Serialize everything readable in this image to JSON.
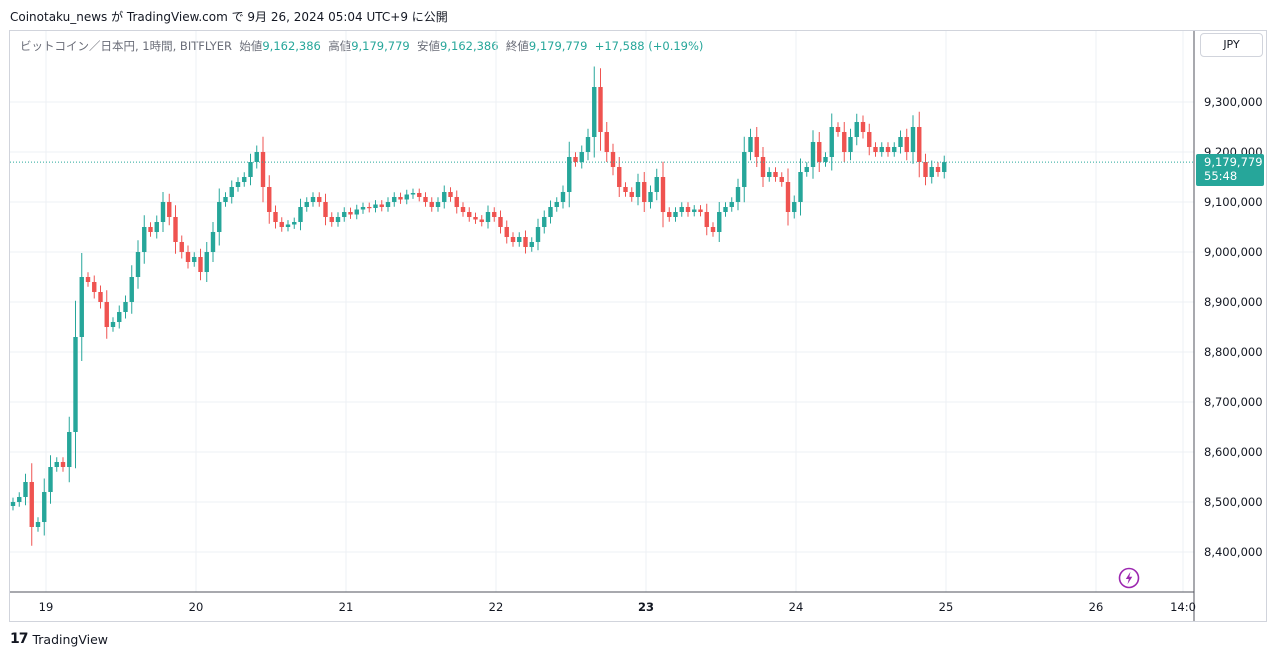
{
  "header": {
    "attribution": "Coinotaku_news が TradingView.com で 9月 26, 2024 05:04 UTC+9 に公開"
  },
  "symbol_info": {
    "name": "ビットコイン／日本円, 1時間, BITFLYER",
    "open_label": "始値",
    "open_value": "9,162,386",
    "high_label": "高値",
    "high_value": "9,179,779",
    "low_label": "安値",
    "low_value": "9,162,386",
    "close_label": "終値",
    "close_value": "9,179,779",
    "change": "+17,588 (+0.19%)"
  },
  "currency_button": "JPY",
  "last_price": {
    "price": "9,179,779",
    "countdown": "55:48"
  },
  "brand": {
    "logo": "17",
    "name": "TradingView"
  },
  "colors": {
    "up": "#26a69a",
    "down": "#ef5350",
    "grid": "#eef1f4",
    "accent_icon": "#9c27b0"
  },
  "chart_data": {
    "type": "candlestick",
    "interval_hours": 1,
    "x_start": "19 (day offset -0.76)",
    "x_tick_labels": [
      "19",
      "20",
      "21",
      "22",
      "23",
      "24",
      "25",
      "26",
      "14:0"
    ],
    "x_tick_days": [
      0,
      1,
      2,
      3,
      4,
      5,
      6,
      7,
      7.58
    ],
    "y_tick_labels": [
      "9,300,000",
      "9,200,000",
      "9,100,000",
      "9,000,000",
      "8,900,000",
      "8,800,000",
      "8,700,000",
      "8,600,000",
      "8,500,000",
      "8,400,000"
    ],
    "y_ticks": [
      9300000,
      9200000,
      9100000,
      9000000,
      8900000,
      8800000,
      8700000,
      8600000,
      8500000,
      8400000
    ],
    "ylim": [
      8320000,
      9400000
    ],
    "last_price": 9179779,
    "closes": [
      8500000,
      8510000,
      8540000,
      8450000,
      8460000,
      8520000,
      8570000,
      8580000,
      8570000,
      8640000,
      8830000,
      8950000,
      8940000,
      8920000,
      8900000,
      8850000,
      8860000,
      8880000,
      8900000,
      8950000,
      9000000,
      9050000,
      9040000,
      9060000,
      9100000,
      9070000,
      9020000,
      9000000,
      8980000,
      8990000,
      8960000,
      9000000,
      9040000,
      9100000,
      9110000,
      9130000,
      9140000,
      9150000,
      9180000,
      9200000,
      9130000,
      9080000,
      9060000,
      9050000,
      9055000,
      9060000,
      9090000,
      9100000,
      9110000,
      9100000,
      9070000,
      9060000,
      9070000,
      9080000,
      9075000,
      9085000,
      9090000,
      9088000,
      9095000,
      9090000,
      9100000,
      9110000,
      9105000,
      9115000,
      9118000,
      9110000,
      9100000,
      9090000,
      9100000,
      9120000,
      9110000,
      9090000,
      9080000,
      9070000,
      9065000,
      9060000,
      9080000,
      9070000,
      9050000,
      9030000,
      9020000,
      9030000,
      9010000,
      9020000,
      9050000,
      9070000,
      9090000,
      9100000,
      9120000,
      9190000,
      9180000,
      9200000,
      9230000,
      9330000,
      9240000,
      9200000,
      9170000,
      9130000,
      9120000,
      9110000,
      9140000,
      9100000,
      9120000,
      9150000,
      9080000,
      9070000,
      9080000,
      9090000,
      9080000,
      9085000,
      9080000,
      9050000,
      9040000,
      9080000,
      9090000,
      9100000,
      9130000,
      9200000,
      9230000,
      9190000,
      9150000,
      9160000,
      9150000,
      9140000,
      9080000,
      9100000,
      9160000,
      9170000,
      9220000,
      9180000,
      9190000,
      9250000,
      9240000,
      9200000,
      9230000,
      9260000,
      9240000,
      9210000,
      9200000,
      9210000,
      9200000,
      9210000,
      9230000,
      9200000,
      9250000,
      9180000,
      9150000,
      9170000,
      9160000,
      9179779
    ]
  }
}
